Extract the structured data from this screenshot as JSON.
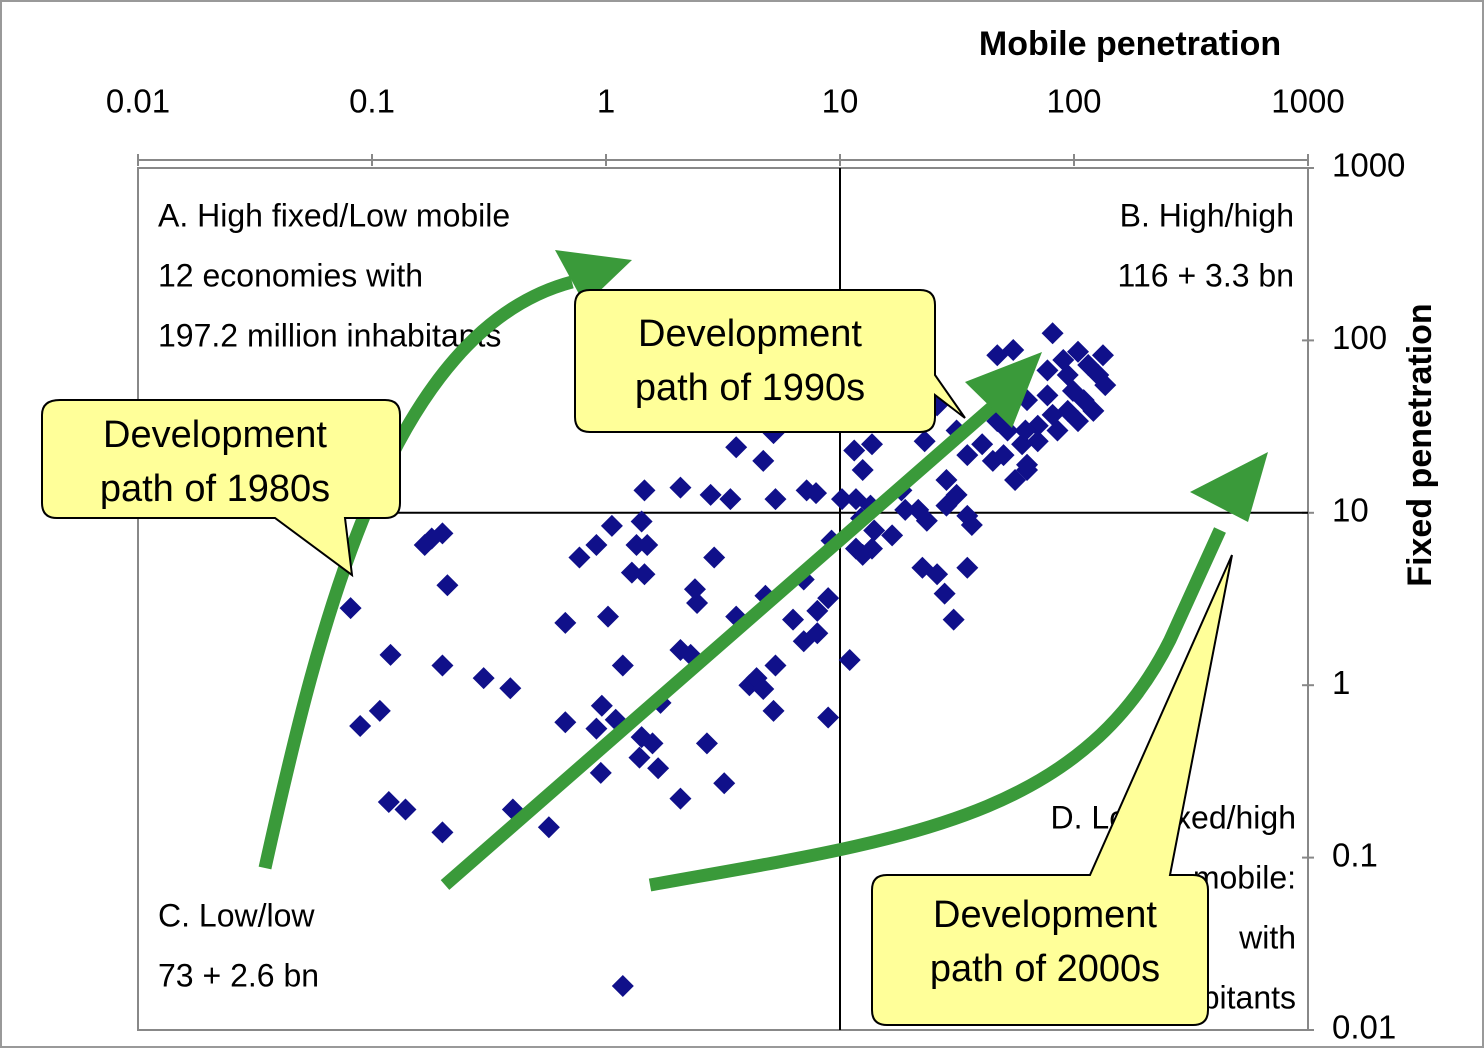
{
  "chart_data": {
    "type": "scatter",
    "xscale": "log",
    "yscale": "log",
    "x_label": "Mobile penetration",
    "y_label": "Fixed penetration",
    "xlim": [
      0.01,
      1000
    ],
    "ylim": [
      0.01,
      1000
    ],
    "xticks": [
      0.01,
      0.1,
      1,
      10,
      100,
      1000
    ],
    "yticks": [
      0.01,
      0.1,
      1,
      10,
      100,
      1000
    ],
    "color": "#10108a",
    "annotations": {
      "quadrant_a": [
        "A. High fixed/Low mobile",
        "12 economies with",
        "197.2 million inhabitants"
      ],
      "quadrant_b": [
        "B. High/high",
        "116 + 3.3 bn"
      ],
      "quadrant_c": [
        "C. Low/low",
        "73 + 2.6 bn"
      ],
      "quadrant_d": [
        "D. Low fixed/high",
        "mobile:",
        "with",
        "inhabitants"
      ],
      "callout_1980s": [
        "Development",
        "path of 1980s"
      ],
      "callout_1990s": [
        "Development",
        "path of 1990s"
      ],
      "callout_2000s": [
        "Development",
        "path of 2000s"
      ]
    },
    "x": [
      0.081,
      0.089,
      0.108,
      0.12,
      0.118,
      0.139,
      0.168,
      0.18,
      0.2,
      0.21,
      0.2,
      0.2,
      0.3,
      0.39,
      0.4,
      0.57,
      0.67,
      0.77,
      0.91,
      1.06,
      1.02,
      1.18,
      0.67,
      0.96,
      0.91,
      1.1,
      0.95,
      1.35,
      1.42,
      1.46,
      1.29,
      1.46,
      1.5,
      1.18,
      1.42,
      1.58,
      1.71,
      1.39,
      1.67,
      2.08,
      2.7,
      3.2,
      2.08,
      2.08,
      2.3,
      2.4,
      2.45,
      2.9,
      2.8,
      3.4,
      3.6,
      3.6,
      4.1,
      4.4,
      4.7,
      5.3,
      5.2,
      4.7,
      5.2,
      4.8,
      6.3,
      7,
      8,
      8,
      8.9,
      8.9,
      9.2,
      7,
      5.3,
      7.2,
      7.9,
      10.2,
      11,
      11.7,
      12.5,
      13.7,
      14,
      16.7,
      12.3,
      11.7,
      13.5,
      12.5,
      11.5,
      13.7,
      11.2,
      12.3,
      15,
      18.3,
      19,
      21.6,
      23.5,
      22.5,
      26,
      28,
      30.6,
      35,
      28.5,
      31.5,
      35,
      36.6,
      28.5,
      23,
      21,
      26,
      31.5,
      35,
      40.5,
      47,
      47,
      45,
      50,
      52,
      57,
      63,
      70,
      63,
      81,
      77,
      55,
      47,
      90,
      99,
      104,
      115,
      127,
      133,
      121,
      94,
      85,
      110,
      77,
      94,
      81,
      60,
      56,
      63,
      70,
      104,
      136,
      62
    ],
    "y": [
      2.8,
      0.58,
      0.71,
      1.5,
      0.21,
      0.19,
      6.5,
      7.1,
      7.6,
      3.8,
      1.3,
      0.14,
      1.1,
      0.96,
      0.19,
      0.15,
      2.3,
      5.5,
      6.5,
      8.4,
      2.5,
      1.3,
      0.61,
      0.76,
      0.56,
      0.63,
      0.31,
      6.5,
      8.9,
      13.5,
      4.5,
      4.4,
      6.5,
      0.018,
      0.5,
      0.46,
      0.79,
      0.38,
      0.33,
      0.22,
      0.46,
      0.27,
      14,
      1.6,
      1.5,
      3.6,
      3,
      5.5,
      12.7,
      12,
      2.5,
      24,
      1,
      1.1,
      0.95,
      1.3,
      0.71,
      20,
      29,
      3.3,
      2.4,
      1.8,
      2,
      2.7,
      3.2,
      0.65,
      6.9,
      4.1,
      12,
      13.5,
      13,
      12,
      1.4,
      6.2,
      5.7,
      6.2,
      7.9,
      7.4,
      9.3,
      12,
      11,
      17.7,
      23,
      25,
      34,
      39,
      34,
      13.5,
      10.4,
      10.4,
      9,
      4.8,
      4.4,
      3.4,
      2.4,
      4.8,
      11,
      12.7,
      9.6,
      8.5,
      15.5,
      26,
      34,
      42,
      30,
      21.6,
      25,
      51,
      34,
      20,
      21.6,
      30,
      59,
      45,
      26,
      19,
      110,
      67,
      88,
      82,
      77,
      51,
      86,
      72,
      63,
      82,
      39,
      39,
      30,
      45,
      48,
      63,
      37,
      25,
      15.5,
      17.7,
      32,
      34,
      55,
      30
    ]
  }
}
